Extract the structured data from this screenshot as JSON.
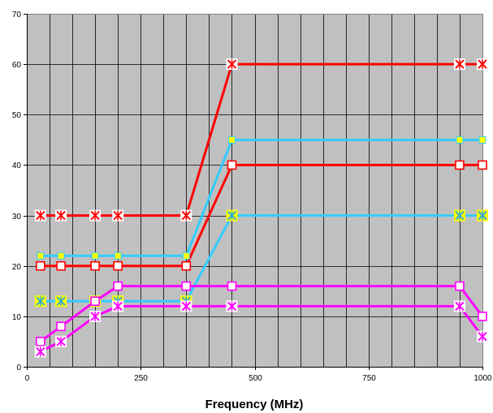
{
  "chart_data": {
    "type": "line",
    "title": "",
    "xlabel": "Frequency (MHz)",
    "ylabel": "",
    "xlim": [
      0,
      1000
    ],
    "ylim": [
      0,
      70
    ],
    "xticks": [
      0,
      250,
      500,
      750,
      1000
    ],
    "yticks": [
      0,
      10,
      20,
      30,
      40,
      50,
      60,
      70
    ],
    "x_minor_step": 50,
    "grid": true,
    "legend": "none",
    "plot_background": "#c0c0c0",
    "series": [
      {
        "color": "#ff0000",
        "marker": "star-box",
        "x": [
          30,
          75,
          150,
          200,
          350,
          450,
          950,
          1000
        ],
        "y": [
          30,
          30,
          30,
          30,
          30,
          60,
          60,
          60
        ]
      },
      {
        "color": "#ff0000",
        "marker": "open-square",
        "x": [
          30,
          75,
          150,
          200,
          350,
          450,
          950,
          1000
        ],
        "y": [
          20,
          20,
          20,
          20,
          20,
          40,
          40,
          40
        ]
      },
      {
        "color": "#33ccff",
        "marker": "yellow-square",
        "x": [
          30,
          75,
          150,
          200,
          350,
          450,
          950,
          1000
        ],
        "y": [
          22,
          22,
          22,
          22,
          22,
          45,
          45,
          45
        ]
      },
      {
        "color": "#33ccff",
        "marker": "yellow-star",
        "x": [
          30,
          75,
          150,
          200,
          350,
          450,
          950,
          1000
        ],
        "y": [
          13,
          13,
          13,
          13,
          13,
          30,
          30,
          30
        ]
      },
      {
        "color": "#ff00ff",
        "marker": "open-square",
        "x": [
          30,
          75,
          150,
          200,
          350,
          450,
          950,
          1000
        ],
        "y": [
          5,
          8,
          13,
          16,
          16,
          16,
          16,
          10
        ]
      },
      {
        "color": "#ff00ff",
        "marker": "star-box",
        "x": [
          30,
          75,
          150,
          200,
          350,
          450,
          950,
          1000
        ],
        "y": [
          3,
          5,
          10,
          12,
          12,
          12,
          12,
          6
        ]
      }
    ]
  }
}
